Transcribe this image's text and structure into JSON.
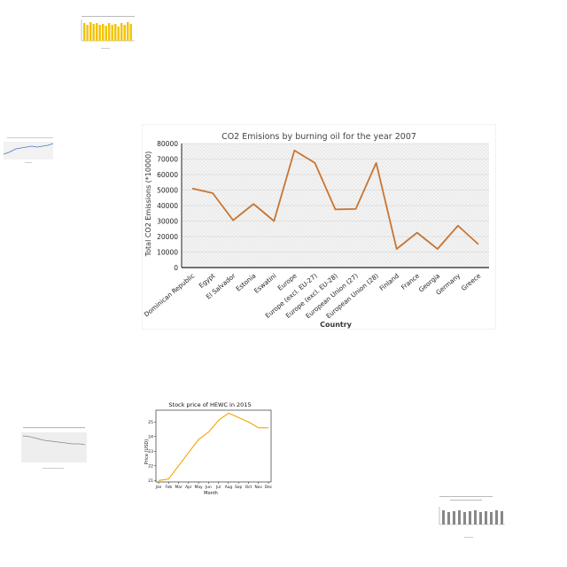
{
  "chart_data": [
    {
      "type": "line",
      "title": "CO2 Emisions by burning oil for the year 2007",
      "xlabel": "Country",
      "ylabel": "Total CO2 Emissions (*10000)",
      "categories": [
        "Dominican Republic",
        "Egypt",
        "El Salvador",
        "Estonia",
        "Eswatini",
        "Europe",
        "Europe (excl. EU-27)",
        "Europe (excl. EU-28)",
        "European Union (27)",
        "European Union (28)",
        "Finland",
        "France",
        "Georgia",
        "Germany",
        "Greece"
      ],
      "values": [
        51000,
        48000,
        30500,
        41000,
        30000,
        75500,
        67500,
        37500,
        37800,
        67500,
        12000,
        22500,
        12000,
        27000,
        15000
      ],
      "ylim": [
        0,
        80000
      ],
      "yticks": [
        "0",
        "10000",
        "20000",
        "30000",
        "40000",
        "50000",
        "60000",
        "70000",
        "80000"
      ],
      "grid": true,
      "color": "#c87533"
    },
    {
      "type": "line",
      "title": "Stock price of HEWC in 2015",
      "xlabel": "Month",
      "ylabel": "Price (USD)",
      "categories": [
        "Jan",
        "Feb",
        "Mar",
        "Apr",
        "May",
        "Jun",
        "Jul",
        "Aug",
        "Sep",
        "Oct",
        "Nov",
        "Dec"
      ],
      "values": [
        21.0,
        21.1,
        22.0,
        22.9,
        23.8,
        24.3,
        25.1,
        25.6,
        25.3,
        25.0,
        24.6,
        24.6
      ],
      "ylim": [
        20.9,
        25.8
      ],
      "yticks": [
        "21",
        "22",
        "23",
        "24",
        "25"
      ],
      "grid": false,
      "color": "#f0a500"
    }
  ]
}
